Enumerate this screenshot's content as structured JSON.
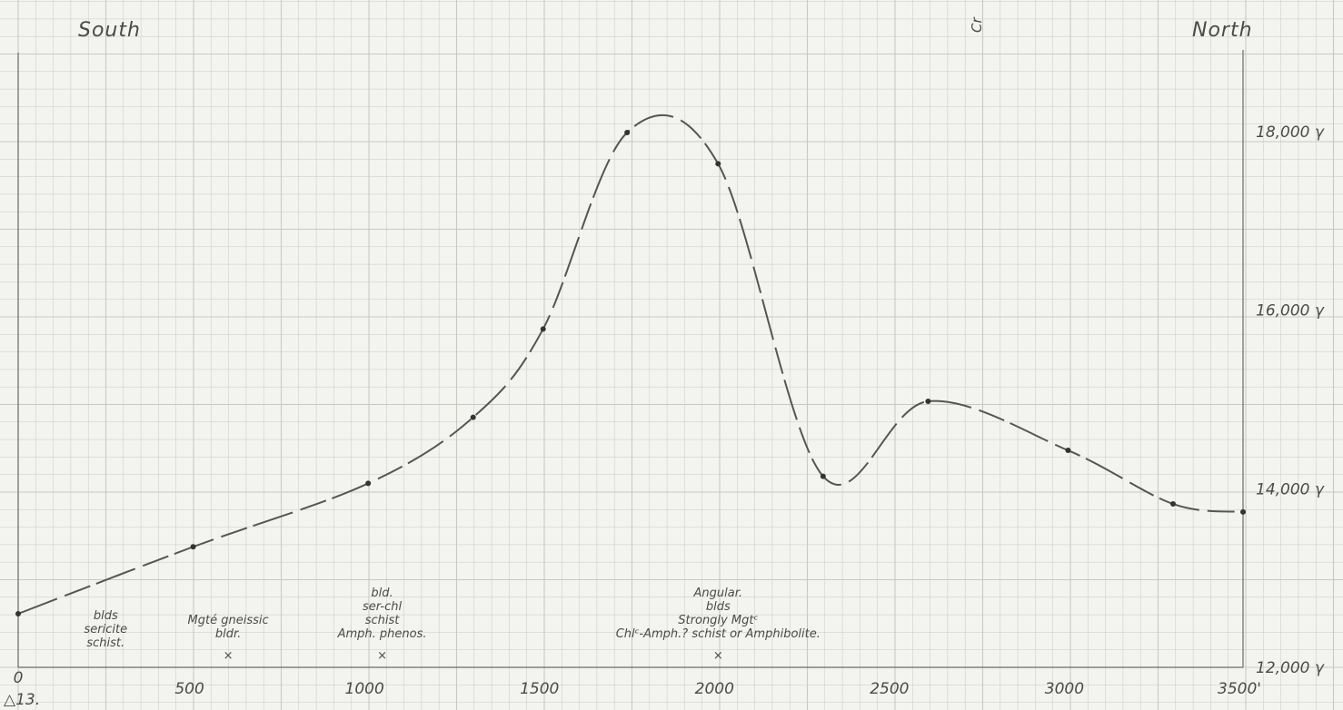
{
  "chart_data": {
    "type": "line",
    "title": "",
    "xlabel": "",
    "ylabel": "",
    "header_left": "South",
    "header_right": "North",
    "corner_note": "Cr",
    "origin_label": "0",
    "station_label": "△13.",
    "x_ticks": [
      "500",
      "1000",
      "1500",
      "2000",
      "2500",
      "3000",
      "3500'"
    ],
    "x_tick_values": [
      500,
      1000,
      1500,
      2000,
      2500,
      3000,
      3500
    ],
    "y_ticks": [
      "12,000 γ",
      "14,000 γ",
      "16,000 γ",
      "18,000 γ"
    ],
    "y_tick_values": [
      12000,
      14000,
      16000,
      18000
    ],
    "xlim": [
      0,
      3500
    ],
    "ylim": [
      12000,
      18000
    ],
    "grid": true,
    "series": [
      {
        "x": [
          0,
          500,
          1000,
          1300,
          1500,
          1740,
          2000,
          2300,
          2600,
          3000,
          3300,
          3500
        ],
        "values": [
          12600,
          13350,
          14060,
          14800,
          15790,
          17990,
          17640,
          14140,
          14980,
          14430,
          13830,
          13740
        ]
      }
    ],
    "annotations": [
      {
        "x": 250,
        "lines": [
          "blds",
          "sericite",
          "schist."
        ],
        "marker": false
      },
      {
        "x": 600,
        "lines": [
          "Mgté gneissic",
          "bldr."
        ],
        "marker": true
      },
      {
        "x": 1040,
        "lines": [
          "bld.",
          "ser-chl",
          "schist",
          "Amph. phenos."
        ],
        "marker": true
      },
      {
        "x": 2000,
        "lines": [
          "Angular.",
          "blds",
          "Strongly Mgtᶜ",
          "Chlᶜ-Amph.? schist or Amphibolite."
        ],
        "marker": true
      }
    ],
    "line_color": "#555555",
    "grid_color": "#c9c9c4"
  }
}
